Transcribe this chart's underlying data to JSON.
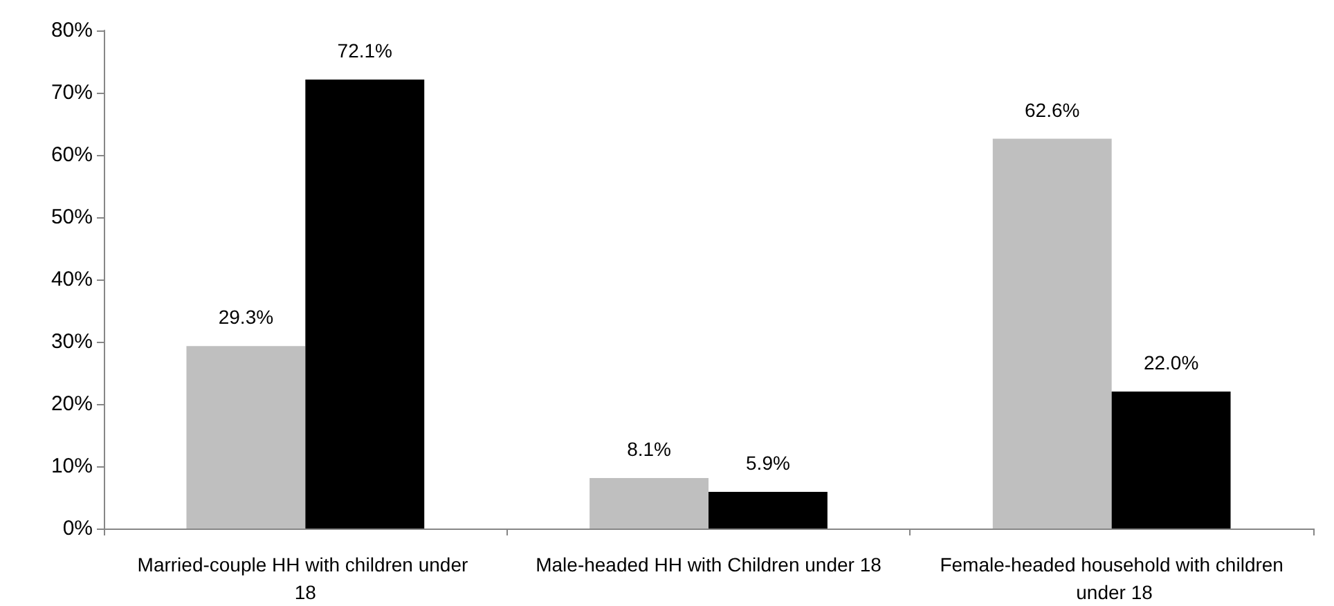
{
  "chart_data": {
    "type": "bar",
    "categories": [
      "Married-couple HH with children under 18",
      "Male-headed HH with Children under 18",
      "Female-headed household with children under 18"
    ],
    "series": [
      {
        "color": "#bfbfbf",
        "values": [
          29.3,
          8.1,
          62.6
        ],
        "value_labels": [
          "29.3%",
          "8.1%",
          "62.6%"
        ]
      },
      {
        "color": "#000000",
        "values": [
          72.1,
          5.9,
          22.0
        ],
        "value_labels": [
          "72.1%",
          "5.9%",
          "22.0%"
        ]
      }
    ],
    "ylim": [
      0,
      80
    ],
    "yticks": [
      {
        "value": 0,
        "label": "0%"
      },
      {
        "value": 10,
        "label": "10%"
      },
      {
        "value": 20,
        "label": "20%"
      },
      {
        "value": 30,
        "label": "30%"
      },
      {
        "value": 40,
        "label": "40%"
      },
      {
        "value": 50,
        "label": "50%"
      },
      {
        "value": 60,
        "label": "60%"
      },
      {
        "value": 70,
        "label": "70%"
      },
      {
        "value": 80,
        "label": "80%"
      }
    ],
    "grid": false
  }
}
